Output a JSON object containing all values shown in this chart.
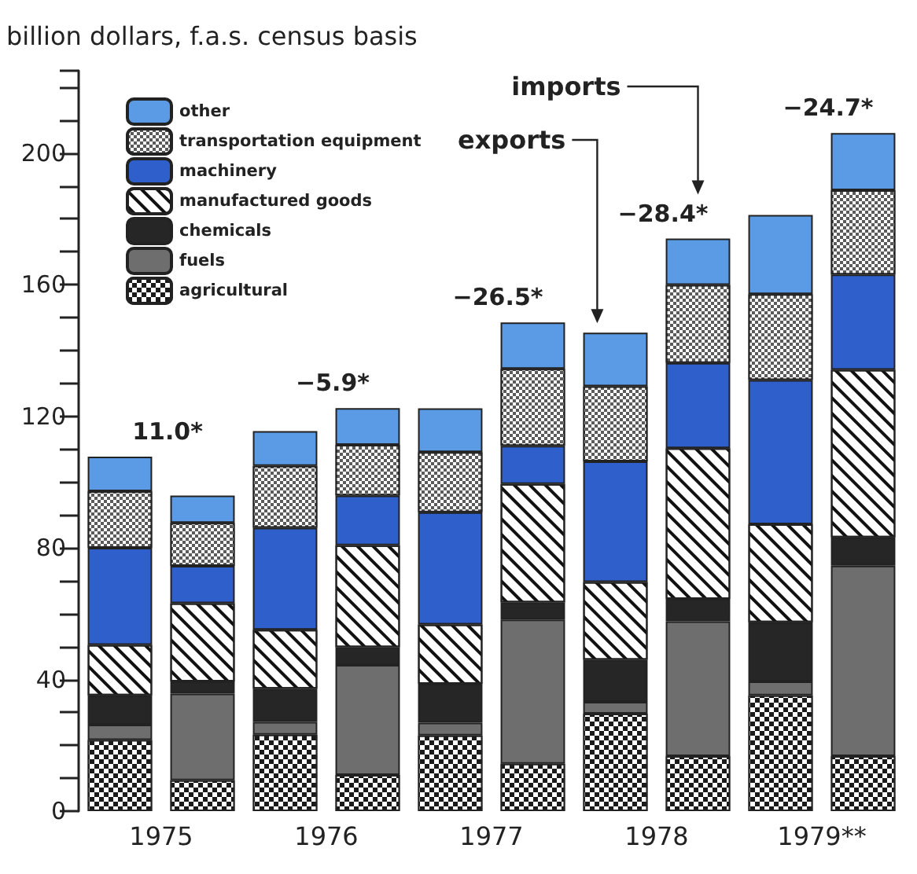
{
  "chart_data": {
    "type": "bar",
    "stacked": true,
    "ylabel": "billion dollars, f.a.s. census basis",
    "categories": [
      "1975",
      null,
      "1976",
      null,
      "1977",
      null,
      "1978",
      null,
      "1979**",
      null
    ],
    "series": [
      {
        "name": "agricultural",
        "color": "#1a1a1a",
        "values": [
          21.6,
          9.4,
          23.2,
          11.0,
          23.0,
          14.4,
          29.6,
          16.7,
          35.2,
          16.7
        ]
      },
      {
        "name": "fuels",
        "color": "#6e6e6e",
        "values": [
          4.7,
          26.3,
          3.9,
          33.4,
          3.9,
          43.8,
          3.6,
          41.0,
          4.2,
          57.9
        ]
      },
      {
        "name": "chemicals",
        "color": "#262626",
        "values": [
          8.9,
          3.7,
          10.1,
          5.4,
          11.8,
          5.2,
          12.8,
          6.8,
          18.0,
          8.6
        ]
      },
      {
        "name": "manufactured goods",
        "color": "#ffffff",
        "values": [
          15.3,
          23.8,
          17.9,
          31.0,
          18.0,
          36.0,
          23.6,
          45.8,
          29.8,
          50.9
        ]
      },
      {
        "name": "machinery",
        "color": "#2f5fcb",
        "values": [
          29.5,
          11.3,
          31.0,
          15.1,
          34.1,
          11.6,
          36.7,
          25.9,
          43.8,
          29.0
        ]
      },
      {
        "name": "transportation equipment",
        "color": "#5a5a5a",
        "values": [
          17.2,
          13.1,
          18.8,
          15.4,
          18.3,
          23.4,
          22.8,
          23.7,
          26.1,
          25.6
        ]
      },
      {
        "name": "other",
        "color": "#5b9be6",
        "values": [
          10.5,
          8.3,
          10.6,
          11.2,
          13.3,
          14.1,
          16.3,
          14.1,
          24.1,
          17.4
        ]
      }
    ],
    "ylim": [
      0,
      225
    ],
    "yticks": [
      0,
      40,
      80,
      120,
      160,
      200
    ],
    "legend": "top left",
    "grid": false,
    "annotations": [
      "11.0*",
      "−5.9*",
      "−26.5*",
      "−28.4*",
      "−24.7*",
      "imports",
      "exports"
    ]
  }
}
